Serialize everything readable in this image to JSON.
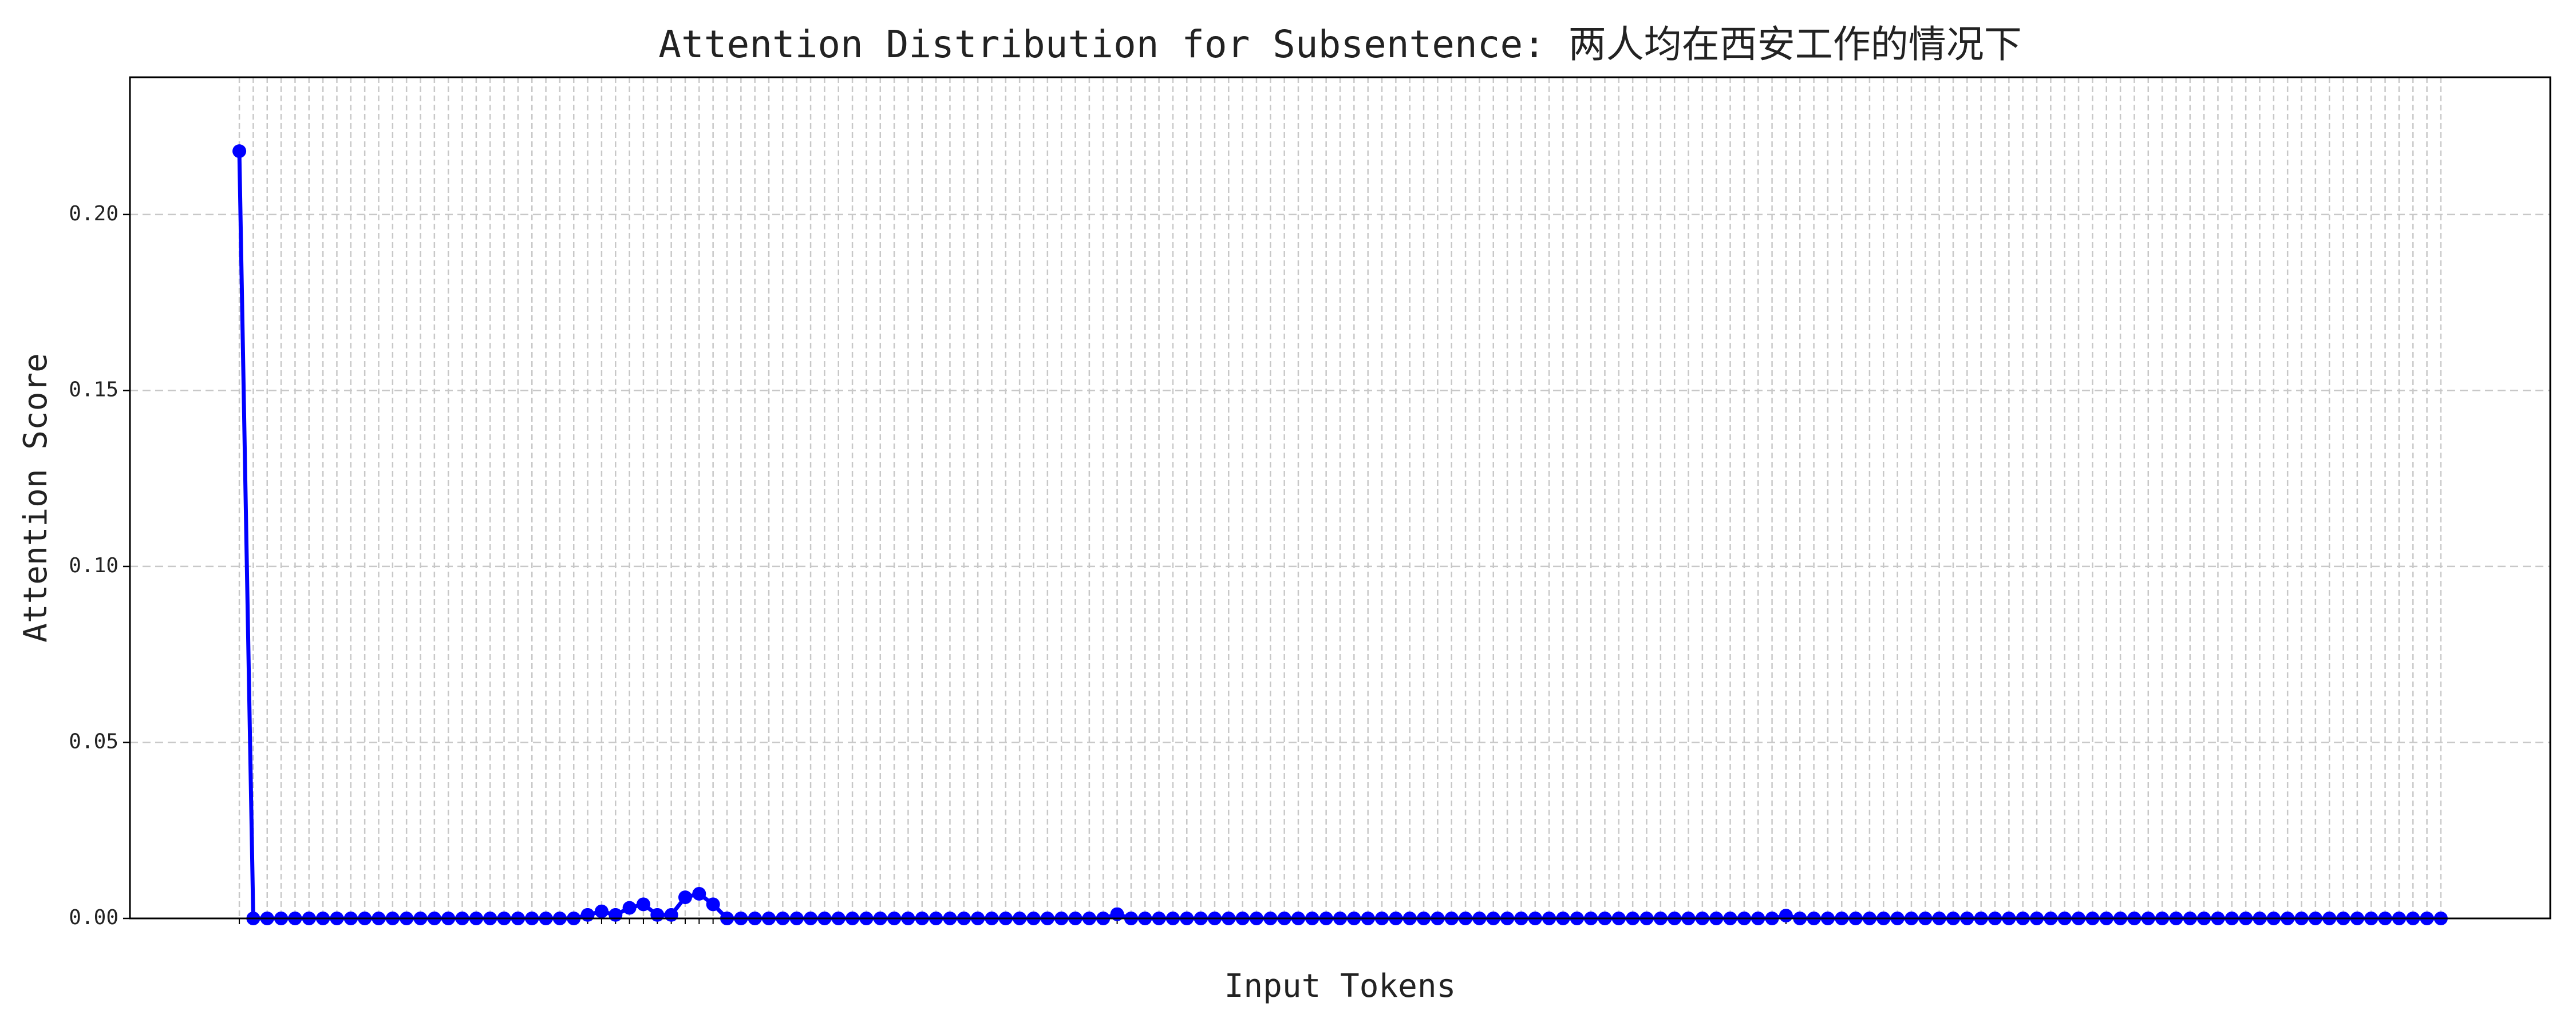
{
  "chart_data": {
    "type": "line",
    "title": "Attention Distribution for Subsentence: 两人均在西安工作的情况下",
    "x_label": "Input Tokens",
    "y_label": "Attention Score",
    "categories": [
      null,
      null,
      null,
      null,
      null,
      null,
      null,
      null,
      null,
      null,
      null,
      null,
      null,
      null,
      null,
      null,
      null,
      null,
      null,
      null,
      null,
      null,
      null,
      null,
      null,
      null,
      null,
      null,
      null,
      null,
      null,
      null,
      null,
      null,
      null,
      null,
      null,
      null,
      null,
      null,
      null,
      null,
      null,
      null,
      null,
      null,
      null,
      null,
      null,
      null,
      null,
      null,
      null,
      null,
      null,
      null,
      null,
      null,
      null,
      null,
      null,
      null,
      null,
      null,
      null,
      null,
      null,
      null,
      null,
      null,
      null,
      null,
      null,
      null,
      null,
      null,
      null,
      null,
      null,
      null,
      null,
      null,
      null,
      null,
      null,
      null,
      null,
      null,
      null,
      null,
      null,
      null,
      null,
      null,
      null,
      null,
      null,
      null,
      null,
      null,
      null,
      null,
      null,
      null,
      null,
      null,
      null,
      null,
      null,
      null,
      null,
      null,
      null,
      null,
      null,
      null,
      null,
      null,
      null,
      null,
      null,
      null,
      null,
      null,
      null,
      null,
      null,
      null,
      null,
      null,
      null,
      null,
      null,
      null,
      null,
      null,
      null,
      null,
      null,
      null,
      null,
      null,
      null,
      null,
      null,
      null,
      null,
      null,
      null,
      null,
      null,
      null,
      null,
      null,
      null,
      null,
      null,
      null,
      null
    ],
    "values": [
      0.218,
      0,
      0,
      0,
      0,
      0,
      0,
      0,
      0,
      0,
      0,
      0,
      0,
      0,
      0,
      0,
      0,
      0,
      0,
      0,
      0,
      0,
      0,
      0,
      0,
      0.001,
      0.002,
      0.001,
      0.003,
      0.004,
      0.001,
      0.001,
      0.006,
      0.007,
      0.004,
      0,
      0,
      0,
      0,
      0,
      0,
      0,
      0,
      0,
      0,
      0,
      0,
      0,
      0,
      0,
      0,
      0,
      0,
      0,
      0,
      0,
      0,
      0,
      0,
      0,
      0,
      0,
      0,
      0.0012,
      0,
      0,
      0,
      0,
      0,
      0,
      0,
      0,
      0,
      0,
      0,
      0,
      0,
      0,
      0,
      0,
      0,
      0,
      0,
      0,
      0,
      0,
      0,
      0,
      0,
      0,
      0,
      0,
      0,
      0,
      0,
      0,
      0,
      0,
      0,
      0,
      0,
      0,
      0,
      0,
      0,
      0,
      0,
      0,
      0,
      0,
      0,
      0.0008,
      0,
      0,
      0,
      0,
      0,
      0,
      0,
      0,
      0,
      0,
      0,
      0,
      0,
      0,
      0,
      0,
      0,
      0,
      0,
      0,
      0,
      0,
      0,
      0,
      0,
      0,
      0,
      0,
      0,
      0,
      0,
      0,
      0,
      0,
      0,
      0,
      0,
      0,
      0,
      0,
      0,
      0,
      0,
      0,
      0,
      0,
      0
    ],
    "color": "#0000ff",
    "ylim": [
      0,
      0.239
    ],
    "yticks": [
      {
        "value": 0,
        "label": "0.00"
      },
      0.05,
      {
        "value": 0.1,
        "label": "0.10"
      },
      0.15,
      {
        "value": 0.2,
        "label": "0.20"
      }
    ],
    "grid": true
  }
}
